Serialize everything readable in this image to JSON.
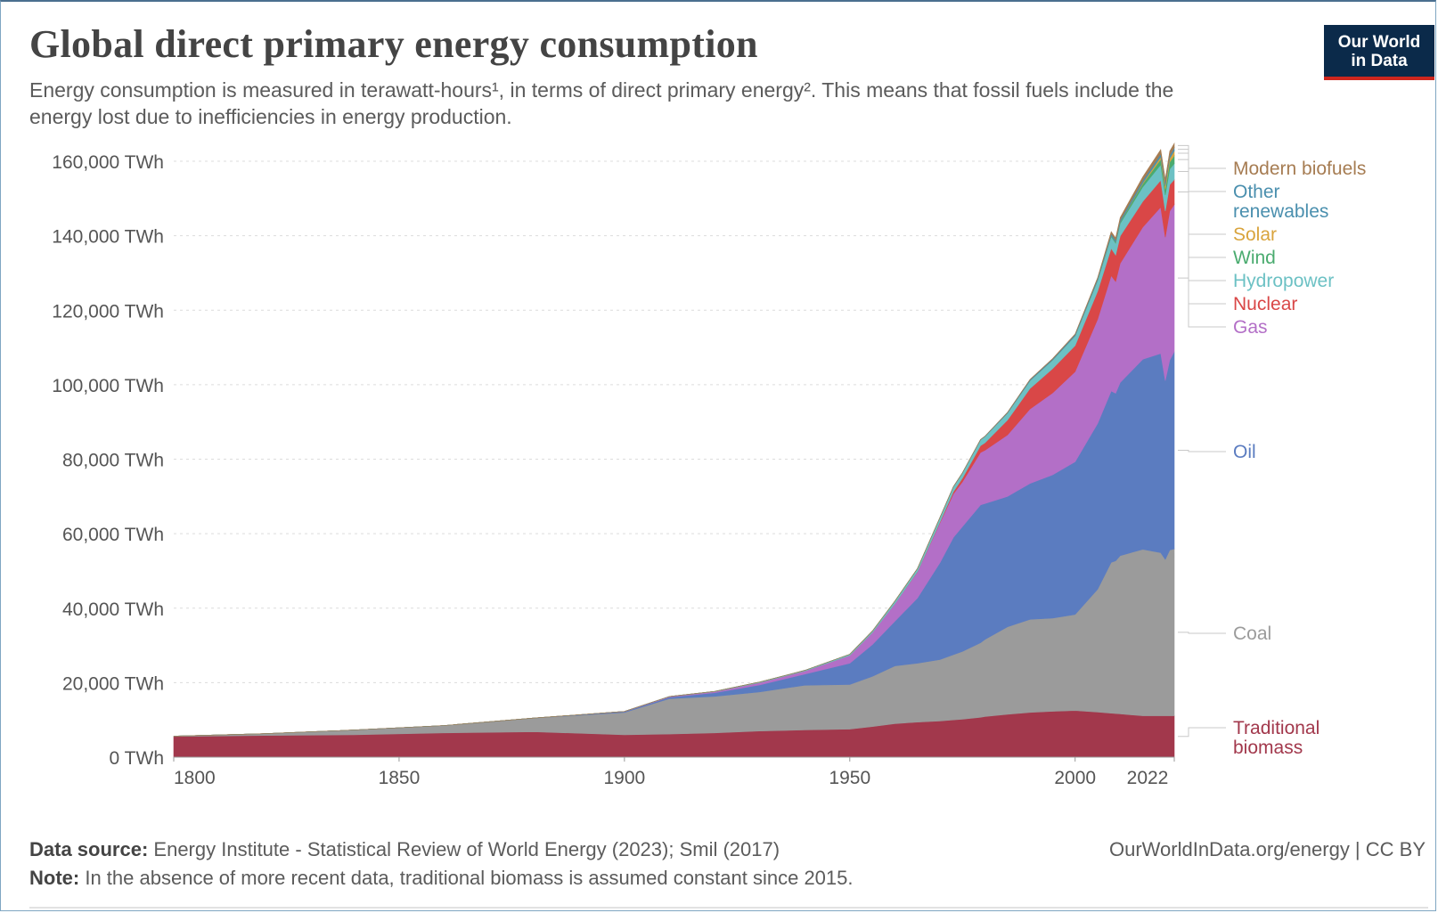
{
  "header": {
    "title": "Global direct primary energy consumption",
    "subtitle": "Energy consumption is measured in terawatt-hours¹, in terms of direct primary energy². This means that fossil fuels include the energy lost due to inefficiencies in energy production."
  },
  "logo": {
    "line1": "Our World",
    "line2": "in Data",
    "bg_color": "#0b2a4a",
    "accent_color": "#ce261e"
  },
  "footer": {
    "source_label": "Data source:",
    "source_text": "Energy Institute - Statistical Review of World Energy (2023); Smil (2017)",
    "note_label": "Note:",
    "note_text": "In the absence of more recent data, traditional biomass is assumed constant since 2015.",
    "credit": "OurWorldInData.org/energy | CC BY"
  },
  "chart_data": {
    "type": "area",
    "stacked": true,
    "title": "Global direct primary energy consumption",
    "xlabel": "",
    "ylabel": "",
    "unit": "TWh",
    "xlim": [
      1800,
      2022
    ],
    "ylim": [
      0,
      160000
    ],
    "y_ticks": [
      0,
      20000,
      40000,
      60000,
      80000,
      100000,
      120000,
      140000,
      160000
    ],
    "y_tick_labels": [
      "0 TWh",
      "20,000 TWh",
      "40,000 TWh",
      "60,000 TWh",
      "80,000 TWh",
      "100,000 TWh",
      "120,000 TWh",
      "140,000 TWh",
      "160,000 TWh"
    ],
    "x_ticks": [
      1800,
      1850,
      1900,
      1950,
      2000,
      2022
    ],
    "x_tick_labels": [
      "1800",
      "1850",
      "1900",
      "1950",
      "2000",
      "2022"
    ],
    "grid": "horizontal dotted",
    "legend_placement": "right, labels at series ends",
    "x": [
      1800,
      1820,
      1840,
      1860,
      1880,
      1900,
      1910,
      1920,
      1930,
      1940,
      1950,
      1955,
      1960,
      1965,
      1970,
      1973,
      1975,
      1979,
      1980,
      1985,
      1990,
      1995,
      2000,
      2005,
      2008,
      2009,
      2010,
      2015,
      2019,
      2020,
      2021,
      2022
    ],
    "series": [
      {
        "name": "Traditional biomass",
        "color": "#a2384c",
        "values": [
          5556,
          5800,
          6000,
          6500,
          6800,
          6000,
          6200,
          6500,
          7000,
          7300,
          7500,
          8200,
          9000,
          9400,
          9700,
          10000,
          10200,
          10700,
          10900,
          11500,
          12000,
          12300,
          12500,
          12100,
          11800,
          11700,
          11600,
          11100,
          11100,
          11100,
          11100,
          11100
        ]
      },
      {
        "name": "Coal",
        "color": "#9b9b9b",
        "values": [
          97,
          500,
          1300,
          2000,
          3700,
          6000,
          9500,
          9800,
          10500,
          12000,
          12000,
          13500,
          15500,
          15800,
          16500,
          17500,
          18200,
          20000,
          20700,
          23500,
          25000,
          25000,
          25800,
          33000,
          40500,
          41000,
          42500,
          44700,
          43800,
          42000,
          44500,
          44800
        ]
      },
      {
        "name": "Oil",
        "color": "#5b7cc0",
        "values": [
          0,
          0,
          0,
          0,
          0,
          200,
          400,
          1000,
          1900,
          3000,
          5700,
          8500,
          12000,
          17500,
          26000,
          31500,
          33500,
          37000,
          36500,
          35000,
          36500,
          38500,
          41000,
          44500,
          46000,
          45000,
          46500,
          51000,
          53500,
          48000,
          51000,
          53000
        ]
      },
      {
        "name": "Gas",
        "color": "#b36fc7",
        "values": [
          0,
          0,
          0,
          0,
          0,
          60,
          150,
          250,
          600,
          800,
          2100,
          3200,
          4700,
          7000,
          10700,
          11700,
          12000,
          14100,
          14300,
          16500,
          20000,
          22000,
          24200,
          28000,
          31000,
          30000,
          32000,
          35500,
          39300,
          38500,
          40000,
          39500
        ]
      },
      {
        "name": "Nuclear",
        "color": "#d94747",
        "values": [
          0,
          0,
          0,
          0,
          0,
          0,
          0,
          0,
          0,
          0,
          0,
          0,
          5,
          60,
          230,
          600,
          1000,
          1800,
          2000,
          4000,
          5500,
          6500,
          7000,
          7500,
          7300,
          7100,
          7300,
          6900,
          7200,
          7000,
          7100,
          6700
        ]
      },
      {
        "name": "Hydropower",
        "color": "#6cc1c4",
        "values": [
          0,
          0,
          0,
          0,
          0,
          20,
          40,
          100,
          150,
          200,
          330,
          450,
          690,
          850,
          1200,
          1300,
          1400,
          1600,
          1700,
          1900,
          2100,
          2300,
          2600,
          2900,
          3200,
          3200,
          3400,
          3900,
          4200,
          4300,
          4200,
          4300
        ]
      },
      {
        "name": "Wind",
        "color": "#4aab6f",
        "values": [
          0,
          0,
          0,
          0,
          0,
          0,
          0,
          0,
          0,
          0,
          0,
          0,
          0,
          0,
          0,
          0,
          0,
          0,
          0,
          0,
          4,
          8,
          30,
          100,
          220,
          280,
          340,
          830,
          1420,
          1590,
          1860,
          2100
        ]
      },
      {
        "name": "Solar",
        "color": "#d9a43d",
        "values": [
          0,
          0,
          0,
          0,
          0,
          0,
          0,
          0,
          0,
          0,
          0,
          0,
          0,
          0,
          0,
          0,
          0,
          0,
          0,
          0,
          0,
          0,
          1,
          4,
          12,
          20,
          32,
          250,
          700,
          850,
          1030,
          1300
        ]
      },
      {
        "name": "Other renewables",
        "color": "#4a8fae",
        "values": [
          0,
          0,
          0,
          0,
          0,
          0,
          0,
          0,
          0,
          0,
          0,
          0,
          10,
          20,
          30,
          40,
          50,
          70,
          80,
          150,
          250,
          300,
          350,
          450,
          500,
          520,
          560,
          700,
          800,
          810,
          820,
          830
        ]
      },
      {
        "name": "Modern biofuels",
        "color": "#a67c52",
        "values": [
          0,
          0,
          0,
          0,
          0,
          0,
          0,
          0,
          0,
          0,
          0,
          0,
          0,
          0,
          0,
          0,
          0,
          0,
          0,
          20,
          80,
          100,
          110,
          200,
          550,
          600,
          650,
          900,
          1100,
          1000,
          1100,
          1150
        ]
      }
    ],
    "legend_labels": [
      {
        "series": "Modern biofuels",
        "lines": [
          "Modern biofuels"
        ],
        "color": "#a67c52"
      },
      {
        "series": "Other renewables",
        "lines": [
          "Other",
          "renewables"
        ],
        "color": "#4a8fae"
      },
      {
        "series": "Solar",
        "lines": [
          "Solar"
        ],
        "color": "#d9a43d"
      },
      {
        "series": "Wind",
        "lines": [
          "Wind"
        ],
        "color": "#4aab6f"
      },
      {
        "series": "Hydropower",
        "lines": [
          "Hydropower"
        ],
        "color": "#6cc1c4"
      },
      {
        "series": "Nuclear",
        "lines": [
          "Nuclear"
        ],
        "color": "#d94747"
      },
      {
        "series": "Gas",
        "lines": [
          "Gas"
        ],
        "color": "#b36fc7"
      },
      {
        "series": "Oil",
        "lines": [
          "Oil"
        ],
        "color": "#5b7cc0"
      },
      {
        "series": "Coal",
        "lines": [
          "Coal"
        ],
        "color": "#9b9b9b"
      },
      {
        "series": "Traditional biomass",
        "lines": [
          "Traditional",
          "biomass"
        ],
        "color": "#a2384c"
      }
    ]
  }
}
